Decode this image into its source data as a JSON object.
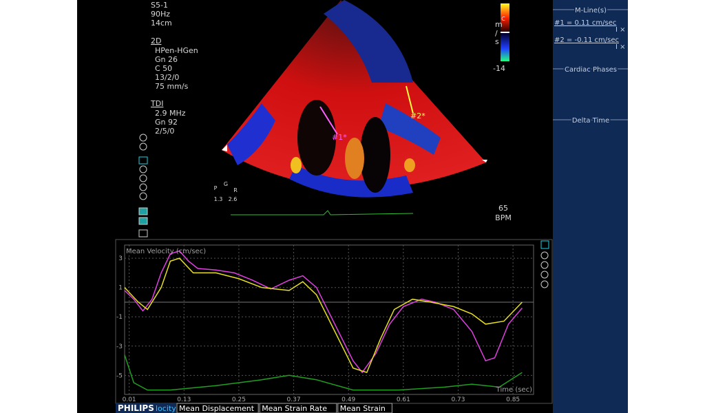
{
  "acquisition": {
    "probe": "S5-1",
    "frame_rate": "90Hz",
    "depth": "14cm"
  },
  "mode_2d": {
    "title": "2D",
    "lines": [
      "HPen-HGen",
      "Gn 26",
      "C 50",
      "13/2/0",
      "75 mm/s"
    ]
  },
  "mode_tdi": {
    "title": "TDI",
    "lines": [
      "2.9 MHz",
      "Gn 92",
      "2/5/0"
    ]
  },
  "color_bar": {
    "unit": [
      "c",
      "m",
      "/",
      "s"
    ],
    "min_label": "-14"
  },
  "markers": [
    "#1*",
    "#2*"
  ],
  "ecg_controls": [
    "P",
    "G",
    "R",
    "1.3",
    "2.6"
  ],
  "heart_rate": {
    "value": "65",
    "unit": "BPM"
  },
  "right_panel": {
    "m_lines_title": "M-Line(s)",
    "m_lines": [
      "#1 = 0.11 cm/sec",
      "#2 = -0.11 cm/sec"
    ],
    "cardiac_phases": "Cardiac Phases",
    "delta_time": "Delta Time"
  },
  "tabs": {
    "brand": "PHILIPS",
    "brand_suffix": "locity",
    "items": [
      "Mean Displacement",
      "Mean Strain Rate",
      "Mean Strain"
    ]
  },
  "chart_data": {
    "type": "line",
    "title": "Mean Velocity (cm/sec)",
    "x_label": "Time (sec)",
    "xlim": [
      0,
      0.895
    ],
    "ylim": [
      -6.3,
      3.9
    ],
    "xticks": [
      0.01,
      0.13,
      0.25,
      0.37,
      0.49,
      0.61,
      0.73,
      0.85
    ],
    "yticks": [
      3,
      1,
      -1,
      -3,
      -5
    ],
    "grid": true,
    "series": [
      {
        "color": "#e040e0",
        "x": [
          0.0,
          0.02,
          0.04,
          0.06,
          0.08,
          0.1,
          0.12,
          0.14,
          0.16,
          0.2,
          0.24,
          0.28,
          0.32,
          0.36,
          0.39,
          0.42,
          0.46,
          0.5,
          0.52,
          0.55,
          0.58,
          0.61,
          0.65,
          0.68,
          0.72,
          0.76,
          0.79,
          0.81,
          0.84,
          0.87
        ],
        "values": [
          0.8,
          0.2,
          -0.6,
          0.2,
          2.0,
          3.3,
          3.5,
          2.8,
          2.3,
          2.2,
          2.0,
          1.5,
          0.9,
          1.5,
          1.8,
          1.0,
          -1.5,
          -4.0,
          -4.8,
          -3.5,
          -1.5,
          -0.3,
          0.2,
          0.0,
          -0.5,
          -2.0,
          -4.0,
          -3.8,
          -1.5,
          -0.4
        ]
      },
      {
        "color": "#e8e020",
        "x": [
          0.0,
          0.03,
          0.05,
          0.08,
          0.1,
          0.12,
          0.15,
          0.2,
          0.25,
          0.3,
          0.36,
          0.39,
          0.42,
          0.46,
          0.5,
          0.53,
          0.56,
          0.59,
          0.63,
          0.67,
          0.72,
          0.76,
          0.79,
          0.83,
          0.87
        ],
        "values": [
          1.0,
          0.0,
          -0.5,
          1.0,
          2.8,
          3.0,
          2.0,
          2.0,
          1.6,
          1.0,
          0.8,
          1.4,
          0.5,
          -2.0,
          -4.5,
          -4.8,
          -2.5,
          -0.5,
          0.2,
          0.0,
          -0.3,
          -0.8,
          -1.5,
          -1.3,
          0.0
        ]
      },
      {
        "color": "#20a020",
        "x": [
          0.0,
          0.02,
          0.05,
          0.1,
          0.2,
          0.3,
          0.36,
          0.42,
          0.5,
          0.6,
          0.7,
          0.76,
          0.82,
          0.87
        ],
        "values": [
          -3.6,
          -5.5,
          -6.0,
          -6.0,
          -5.7,
          -5.3,
          -5.0,
          -5.3,
          -6.0,
          -6.0,
          -5.8,
          -5.6,
          -5.8,
          -4.8
        ]
      }
    ]
  }
}
